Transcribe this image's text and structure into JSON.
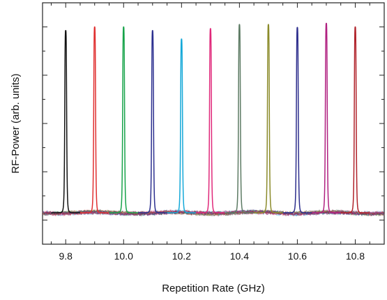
{
  "chart_data": {
    "type": "line",
    "title": "",
    "xlabel": "Repetition Rate (GHz)",
    "ylabel": "RF-Power (arb. units)",
    "xlim": [
      9.72,
      10.9
    ],
    "ylim": [
      0,
      1.0
    ],
    "x_ticks": [
      "9.8",
      "10.0",
      "10.2",
      "10.4",
      "10.6",
      "10.8"
    ],
    "x_tick_values": [
      9.8,
      10.0,
      10.2,
      10.4,
      10.6,
      10.8
    ],
    "y_tick_values": [
      0.1,
      0.3,
      0.5,
      0.7,
      0.9
    ],
    "y_tick_labels_shown": false,
    "grid": false,
    "legend": "none",
    "baseline": 0.13,
    "peak_width_ghz": 0.0035,
    "series": [
      {
        "center": 9.8,
        "peak": 0.885,
        "color": "#111111"
      },
      {
        "center": 9.9,
        "peak": 0.9,
        "color": "#e03030"
      },
      {
        "center": 10.0,
        "peak": 0.9,
        "color": "#17a34a"
      },
      {
        "center": 10.1,
        "peak": 0.885,
        "color": "#2b2f8f"
      },
      {
        "center": 10.2,
        "peak": 0.85,
        "color": "#13a8d8"
      },
      {
        "center": 10.3,
        "peak": 0.893,
        "color": "#e0287a"
      },
      {
        "center": 10.4,
        "peak": 0.91,
        "color": "#5c7a63"
      },
      {
        "center": 10.5,
        "peak": 0.91,
        "color": "#8b8b2a"
      },
      {
        "center": 10.6,
        "peak": 0.898,
        "color": "#2c2d8c"
      },
      {
        "center": 10.7,
        "peak": 0.915,
        "color": "#b02080"
      },
      {
        "center": 10.8,
        "peak": 0.9,
        "color": "#b0222a"
      }
    ]
  }
}
